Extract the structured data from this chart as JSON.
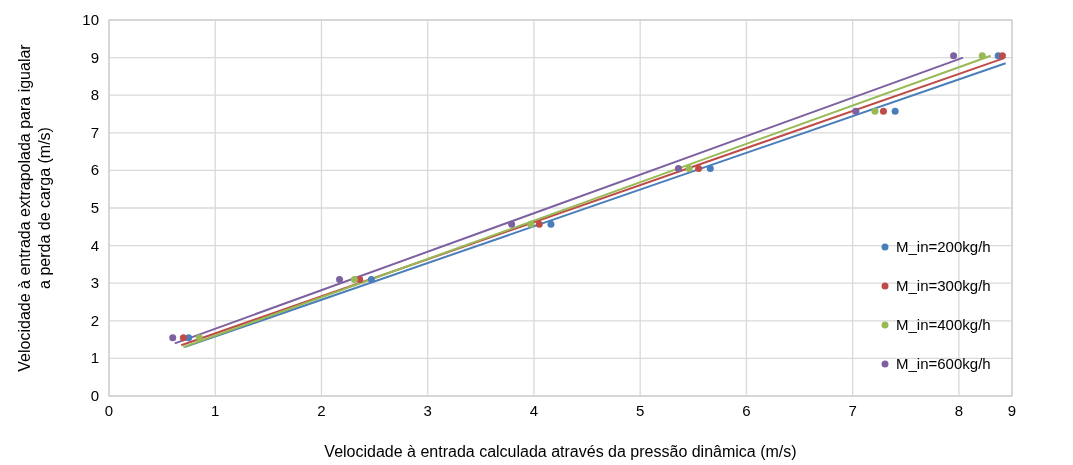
{
  "chart_data": {
    "type": "scatter",
    "xlabel": "Velocidade à entrada calculada através da pressão dinâmica (m/s)",
    "ylabel": "Velocidade à entrada extrapolada para igualar a perda de carga (m/s)",
    "xlim": [
      0,
      8.5
    ],
    "xticks": [
      0,
      1,
      2,
      3,
      4,
      5,
      6,
      7,
      8,
      {
        "value": 8.5,
        "label": "9"
      }
    ],
    "ylim": [
      0,
      10
    ],
    "yticks": [
      0,
      1,
      2,
      3,
      4,
      5,
      6,
      7,
      8,
      9,
      10
    ],
    "grid": true,
    "legend": "bottom right",
    "marker": "circle",
    "series": [
      {
        "name": "M_in=200kg/h",
        "color": "#4a7ebb",
        "x": [
          0.75,
          2.47,
          4.16,
          5.66,
          7.4,
          8.37
        ],
        "values": [
          1.55,
          3.1,
          4.57,
          6.05,
          7.57,
          9.05
        ]
      },
      {
        "name": "M_in=300kg/h",
        "color": "#be4b48",
        "x": [
          0.7,
          2.36,
          4.05,
          5.55,
          7.29,
          8.41
        ],
        "values": [
          1.55,
          3.1,
          4.57,
          6.05,
          7.57,
          9.05
        ]
      },
      {
        "name": "M_in=400kg/h",
        "color": "#98b954",
        "x": [
          0.85,
          2.31,
          3.97,
          5.46,
          7.21,
          8.22
        ],
        "values": [
          1.55,
          3.1,
          4.57,
          6.05,
          7.57,
          9.05
        ]
      },
      {
        "name": "M_in=600kg/h",
        "color": "#7d60a0",
        "x": [
          0.6,
          2.17,
          3.79,
          5.36,
          7.03,
          7.95
        ],
        "values": [
          1.55,
          3.1,
          4.57,
          6.05,
          7.57,
          9.05
        ]
      },
      {
        "type": "line",
        "marker": "none",
        "color": "#4a7ebb",
        "x": [
          0.71,
          8.44
        ],
        "values": [
          1.3,
          8.85
        ]
      },
      {
        "type": "line",
        "marker": "none",
        "color": "#be4b48",
        "x": [
          0.68,
          8.42
        ],
        "values": [
          1.35,
          8.98
        ]
      },
      {
        "type": "line",
        "marker": "none",
        "color": "#98b954",
        "x": [
          0.7,
          8.3
        ],
        "values": [
          1.3,
          9.05
        ]
      },
      {
        "type": "line",
        "marker": "none",
        "color": "#7d60a0",
        "x": [
          0.62,
          8.04
        ],
        "values": [
          1.4,
          9.0
        ]
      }
    ]
  }
}
